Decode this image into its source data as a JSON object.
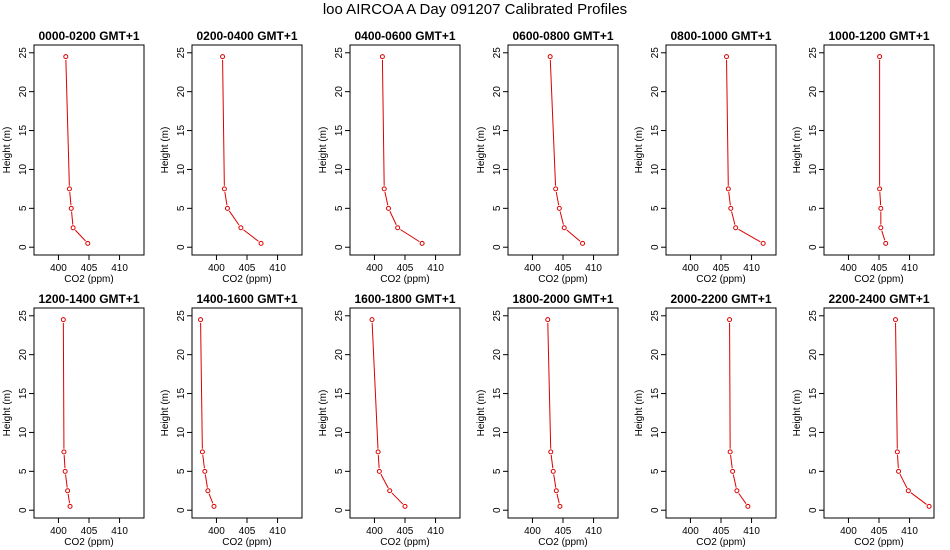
{
  "figure_title": "loo AIRCOA A  Day 091207  Calibrated Profiles",
  "colors": {
    "series": "#dd0000",
    "axis": "#000000",
    "background": "#ffffff"
  },
  "chart_data": [
    {
      "type": "line",
      "title": "0000-0200 GMT+1",
      "xlabel": "CO2 (ppm)",
      "ylabel": "Height (m)",
      "xlim": [
        396,
        414
      ],
      "ylim": [
        -1,
        26
      ],
      "xticks": [
        400,
        405,
        410
      ],
      "yticks": [
        0,
        5,
        10,
        15,
        20,
        25
      ],
      "series": [
        {
          "x": [
            401.2,
            401.8,
            402.1,
            402.4,
            404.8
          ],
          "y": [
            24.5,
            7.5,
            5,
            2.5,
            0.5
          ]
        }
      ]
    },
    {
      "type": "line",
      "title": "0200-0400 GMT+1",
      "xlabel": "CO2 (ppm)",
      "ylabel": "Height (m)",
      "xlim": [
        396,
        414
      ],
      "ylim": [
        -1,
        26
      ],
      "xticks": [
        400,
        405,
        410
      ],
      "yticks": [
        0,
        5,
        10,
        15,
        20,
        25
      ],
      "series": [
        {
          "x": [
            401.0,
            401.3,
            401.8,
            404.0,
            407.3
          ],
          "y": [
            24.5,
            7.5,
            5,
            2.5,
            0.5
          ]
        }
      ]
    },
    {
      "type": "line",
      "title": "0400-0600 GMT+1",
      "xlabel": "CO2 (ppm)",
      "ylabel": "Height (m)",
      "xlim": [
        396,
        414
      ],
      "ylim": [
        -1,
        26
      ],
      "xticks": [
        400,
        405,
        410
      ],
      "yticks": [
        0,
        5,
        10,
        15,
        20,
        25
      ],
      "series": [
        {
          "x": [
            401.3,
            401.6,
            402.3,
            403.8,
            407.8
          ],
          "y": [
            24.5,
            7.5,
            5,
            2.5,
            0.5
          ]
        }
      ]
    },
    {
      "type": "line",
      "title": "0600-0800 GMT+1",
      "xlabel": "CO2 (ppm)",
      "ylabel": "Height (m)",
      "xlim": [
        396,
        414
      ],
      "ylim": [
        -1,
        26
      ],
      "xticks": [
        400,
        405,
        410
      ],
      "yticks": [
        0,
        5,
        10,
        15,
        20,
        25
      ],
      "series": [
        {
          "x": [
            402.9,
            403.8,
            404.4,
            405.2,
            408.2
          ],
          "y": [
            24.5,
            7.5,
            5,
            2.5,
            0.5
          ]
        }
      ]
    },
    {
      "type": "line",
      "title": "0800-1000 GMT+1",
      "xlabel": "CO2 (ppm)",
      "ylabel": "Height (m)",
      "xlim": [
        396,
        414
      ],
      "ylim": [
        -1,
        26
      ],
      "xticks": [
        400,
        405,
        410
      ],
      "yticks": [
        0,
        5,
        10,
        15,
        20,
        25
      ],
      "series": [
        {
          "x": [
            405.9,
            406.2,
            406.6,
            407.4,
            411.9
          ],
          "y": [
            24.5,
            7.5,
            5,
            2.5,
            0.5
          ]
        }
      ]
    },
    {
      "type": "line",
      "title": "1000-1200 GMT+1",
      "xlabel": "CO2 (ppm)",
      "ylabel": "Height (m)",
      "xlim": [
        396,
        414
      ],
      "ylim": [
        -1,
        26
      ],
      "xticks": [
        400,
        405,
        410
      ],
      "yticks": [
        0,
        5,
        10,
        15,
        20,
        25
      ],
      "series": [
        {
          "x": [
            405.1,
            405.1,
            405.3,
            405.3,
            406.1
          ],
          "y": [
            24.5,
            7.5,
            5,
            2.5,
            0.5
          ]
        }
      ]
    },
    {
      "type": "line",
      "title": "1200-1400 GMT+1",
      "xlabel": "CO2 (ppm)",
      "ylabel": "Height (m)",
      "xlim": [
        396,
        414
      ],
      "ylim": [
        -1,
        26
      ],
      "xticks": [
        400,
        405,
        410
      ],
      "yticks": [
        0,
        5,
        10,
        15,
        20,
        25
      ],
      "series": [
        {
          "x": [
            400.8,
            400.9,
            401.1,
            401.5,
            401.9
          ],
          "y": [
            24.5,
            7.5,
            5,
            2.5,
            0.5
          ]
        }
      ]
    },
    {
      "type": "line",
      "title": "1400-1600 GMT+1",
      "xlabel": "CO2 (ppm)",
      "ylabel": "Height (m)",
      "xlim": [
        396,
        414
      ],
      "ylim": [
        -1,
        26
      ],
      "xticks": [
        400,
        405,
        410
      ],
      "yticks": [
        0,
        5,
        10,
        15,
        20,
        25
      ],
      "series": [
        {
          "x": [
            397.4,
            397.7,
            398.1,
            398.6,
            399.6
          ],
          "y": [
            24.5,
            7.5,
            5,
            2.5,
            0.5
          ]
        }
      ]
    },
    {
      "type": "line",
      "title": "1600-1800 GMT+1",
      "xlabel": "CO2 (ppm)",
      "ylabel": "Height (m)",
      "xlim": [
        396,
        414
      ],
      "ylim": [
        -1,
        26
      ],
      "xticks": [
        400,
        405,
        410
      ],
      "yticks": [
        0,
        5,
        10,
        15,
        20,
        25
      ],
      "series": [
        {
          "x": [
            399.6,
            400.6,
            400.8,
            402.5,
            405.0
          ],
          "y": [
            24.5,
            7.5,
            5,
            2.5,
            0.5
          ]
        }
      ]
    },
    {
      "type": "line",
      "title": "1800-2000 GMT+1",
      "xlabel": "CO2 (ppm)",
      "ylabel": "Height (m)",
      "xlim": [
        396,
        414
      ],
      "ylim": [
        -1,
        26
      ],
      "xticks": [
        400,
        405,
        410
      ],
      "yticks": [
        0,
        5,
        10,
        15,
        20,
        25
      ],
      "series": [
        {
          "x": [
            402.5,
            403.0,
            403.4,
            403.9,
            404.5
          ],
          "y": [
            24.5,
            7.5,
            5,
            2.5,
            0.5
          ]
        }
      ]
    },
    {
      "type": "line",
      "title": "2000-2200 GMT+1",
      "xlabel": "CO2 (ppm)",
      "ylabel": "Height (m)",
      "xlim": [
        396,
        414
      ],
      "ylim": [
        -1,
        26
      ],
      "xticks": [
        400,
        405,
        410
      ],
      "yticks": [
        0,
        5,
        10,
        15,
        20,
        25
      ],
      "series": [
        {
          "x": [
            406.4,
            406.5,
            406.9,
            407.6,
            409.4
          ],
          "y": [
            24.5,
            7.5,
            5,
            2.5,
            0.5
          ]
        }
      ]
    },
    {
      "type": "line",
      "title": "2200-2400 GMT+1",
      "xlabel": "CO2 (ppm)",
      "ylabel": "Height (m)",
      "xlim": [
        396,
        414
      ],
      "ylim": [
        -1,
        26
      ],
      "xticks": [
        400,
        405,
        410
      ],
      "yticks": [
        0,
        5,
        10,
        15,
        20,
        25
      ],
      "series": [
        {
          "x": [
            407.7,
            408.0,
            408.2,
            409.8,
            413.2
          ],
          "y": [
            24.5,
            7.5,
            5,
            2.5,
            0.5
          ]
        }
      ]
    }
  ]
}
